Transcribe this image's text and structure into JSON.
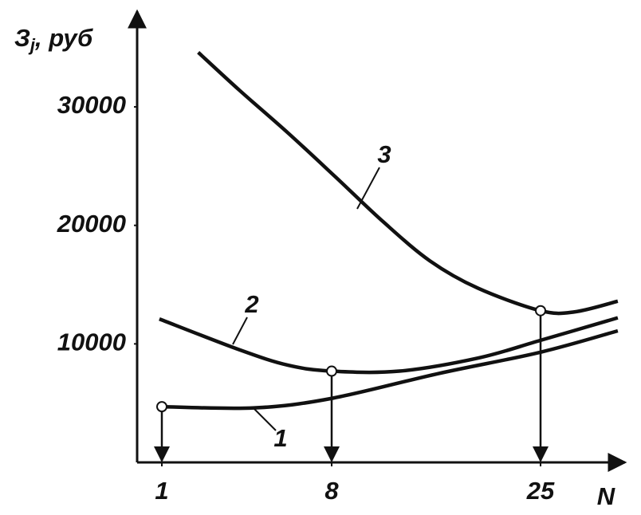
{
  "chart_data": {
    "type": "line",
    "ylabel": {
      "symbol": "З",
      "subscript": "j",
      "unit": ", руб"
    },
    "xlabel": "N",
    "xlim": [
      0,
      31
    ],
    "xticks": [
      1,
      8,
      25
    ],
    "ylim": [
      0,
      37000
    ],
    "yticks": [
      10000,
      20000,
      30000
    ],
    "color": "#111111",
    "series": [
      {
        "name": "1",
        "x": [
          1,
          4.8,
          8,
          16.7,
          25,
          30.7
        ],
        "values": [
          4700,
          4600,
          5400,
          7500,
          9300,
          11100
        ]
      },
      {
        "name": "2",
        "x": [
          0.9,
          4.2,
          6.2,
          8,
          13.5,
          19.9,
          25,
          30.7
        ],
        "values": [
          12100,
          9500,
          8200,
          7700,
          7700,
          8800,
          10300,
          12200
        ]
      },
      {
        "name": "3",
        "x": [
          2.5,
          4.2,
          6.2,
          8.3,
          12.2,
          16,
          19.9,
          25,
          27.5,
          30.7
        ],
        "values": [
          34600,
          31400,
          27800,
          24100,
          20300,
          17000,
          14700,
          12800,
          12700,
          13600
        ]
      }
    ],
    "markers": {
      "x": [
        1,
        8,
        25
      ],
      "values": [
        4700,
        7700,
        12800
      ]
    }
  }
}
